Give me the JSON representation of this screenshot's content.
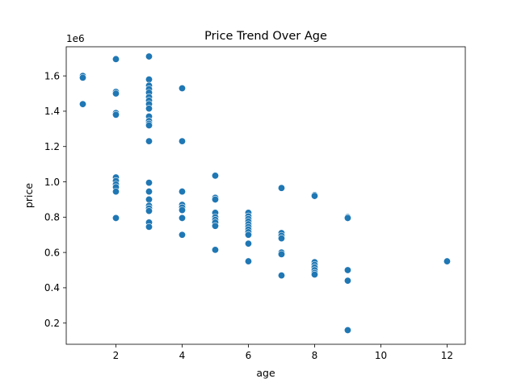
{
  "chart_data": {
    "type": "scatter",
    "title": "Price Trend Over Age",
    "xlabel": "age",
    "ylabel": "price",
    "y_offset_label": "1e6",
    "xlim": [
      0.5,
      12.55
    ],
    "ylim": [
      80000,
      1765000
    ],
    "x_ticks": [
      2,
      4,
      6,
      8,
      10,
      12
    ],
    "x_tick_labels": [
      "2",
      "4",
      "6",
      "8",
      "10",
      "12"
    ],
    "y_ticks": [
      200000,
      400000,
      600000,
      800000,
      1000000,
      1200000,
      1400000,
      1600000
    ],
    "y_tick_labels": [
      "0.2",
      "0.4",
      "0.6",
      "0.8",
      "1.0",
      "1.2",
      "1.4",
      "1.6"
    ],
    "grid": false,
    "legend": "none",
    "series": [
      {
        "color": "#1f77b4",
        "points": [
          {
            "x": 1,
            "y": 1600000
          },
          {
            "x": 1,
            "y": 1590000
          },
          {
            "x": 1,
            "y": 1440000
          },
          {
            "x": 2,
            "y": 1695000
          },
          {
            "x": 2,
            "y": 1510000
          },
          {
            "x": 2,
            "y": 1500000
          },
          {
            "x": 2,
            "y": 1390000
          },
          {
            "x": 2,
            "y": 1380000
          },
          {
            "x": 2,
            "y": 1025000
          },
          {
            "x": 2,
            "y": 1005000
          },
          {
            "x": 2,
            "y": 985000
          },
          {
            "x": 2,
            "y": 970000
          },
          {
            "x": 2,
            "y": 945000
          },
          {
            "x": 2,
            "y": 795000
          },
          {
            "x": 3,
            "y": 1710000
          },
          {
            "x": 3,
            "y": 1580000
          },
          {
            "x": 3,
            "y": 1545000
          },
          {
            "x": 3,
            "y": 1525000
          },
          {
            "x": 3,
            "y": 1505000
          },
          {
            "x": 3,
            "y": 1480000
          },
          {
            "x": 3,
            "y": 1460000
          },
          {
            "x": 3,
            "y": 1440000
          },
          {
            "x": 3,
            "y": 1415000
          },
          {
            "x": 3,
            "y": 1370000
          },
          {
            "x": 3,
            "y": 1345000
          },
          {
            "x": 3,
            "y": 1330000
          },
          {
            "x": 3,
            "y": 1320000
          },
          {
            "x": 3,
            "y": 1230000
          },
          {
            "x": 3,
            "y": 995000
          },
          {
            "x": 3,
            "y": 945000
          },
          {
            "x": 3,
            "y": 900000
          },
          {
            "x": 3,
            "y": 865000
          },
          {
            "x": 3,
            "y": 850000
          },
          {
            "x": 3,
            "y": 835000
          },
          {
            "x": 3,
            "y": 770000
          },
          {
            "x": 3,
            "y": 745000
          },
          {
            "x": 4,
            "y": 1530000
          },
          {
            "x": 4,
            "y": 1230000
          },
          {
            "x": 4,
            "y": 945000
          },
          {
            "x": 4,
            "y": 870000
          },
          {
            "x": 4,
            "y": 855000
          },
          {
            "x": 4,
            "y": 840000
          },
          {
            "x": 4,
            "y": 795000
          },
          {
            "x": 4,
            "y": 700000
          },
          {
            "x": 5,
            "y": 1035000
          },
          {
            "x": 5,
            "y": 910000
          },
          {
            "x": 5,
            "y": 900000
          },
          {
            "x": 5,
            "y": 825000
          },
          {
            "x": 5,
            "y": 800000
          },
          {
            "x": 5,
            "y": 785000
          },
          {
            "x": 5,
            "y": 770000
          },
          {
            "x": 5,
            "y": 750000
          },
          {
            "x": 5,
            "y": 615000
          },
          {
            "x": 6,
            "y": 825000
          },
          {
            "x": 6,
            "y": 805000
          },
          {
            "x": 6,
            "y": 790000
          },
          {
            "x": 6,
            "y": 775000
          },
          {
            "x": 6,
            "y": 760000
          },
          {
            "x": 6,
            "y": 745000
          },
          {
            "x": 6,
            "y": 730000
          },
          {
            "x": 6,
            "y": 715000
          },
          {
            "x": 6,
            "y": 700000
          },
          {
            "x": 6,
            "y": 650000
          },
          {
            "x": 6,
            "y": 550000
          },
          {
            "x": 7,
            "y": 965000
          },
          {
            "x": 7,
            "y": 710000
          },
          {
            "x": 7,
            "y": 695000
          },
          {
            "x": 7,
            "y": 680000
          },
          {
            "x": 7,
            "y": 600000
          },
          {
            "x": 7,
            "y": 590000
          },
          {
            "x": 7,
            "y": 470000
          },
          {
            "x": 8,
            "y": 925000
          },
          {
            "x": 8,
            "y": 920000
          },
          {
            "x": 8,
            "y": 545000
          },
          {
            "x": 8,
            "y": 530000
          },
          {
            "x": 8,
            "y": 515000
          },
          {
            "x": 8,
            "y": 500000
          },
          {
            "x": 8,
            "y": 485000
          },
          {
            "x": 8,
            "y": 475000
          },
          {
            "x": 9,
            "y": 800000
          },
          {
            "x": 9,
            "y": 795000
          },
          {
            "x": 9,
            "y": 500000
          },
          {
            "x": 9,
            "y": 440000
          },
          {
            "x": 9,
            "y": 160000
          },
          {
            "x": 12,
            "y": 550000
          }
        ]
      }
    ]
  }
}
